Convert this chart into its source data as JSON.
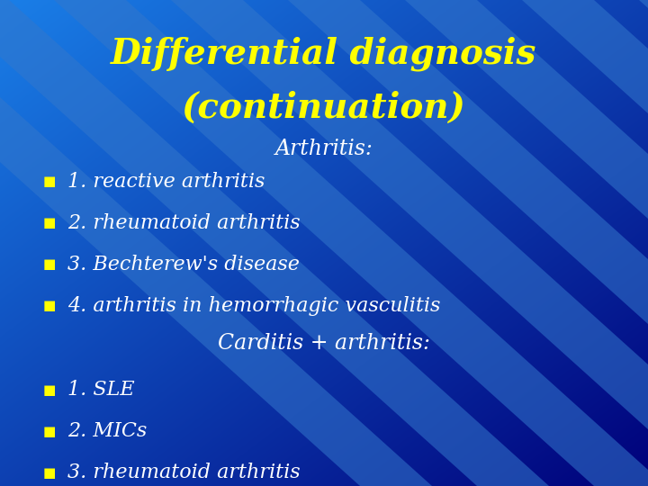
{
  "title_line1": "Differential diagnosis",
  "title_line2": "(continuation)",
  "title_color": "#FFFF00",
  "title_fontsize": 28,
  "bg_color_topleft": "#1a7fe8",
  "bg_color_bottomright": "#00007a",
  "section1_label": "Arthritis:",
  "section1_color": "#FFFFFF",
  "section1_fontsize": 17,
  "section1_items": [
    "1. reactive arthritis",
    "2. rheumatoid arthritis",
    "3. Bechterew's disease",
    "4. arthritis in hemorrhagic vasculitis"
  ],
  "section2_label": "Carditis + arthritis:",
  "section2_color": "#FFFFFF",
  "section2_fontsize": 17,
  "section2_items": [
    "1. SLE",
    "2. MICs",
    "3. rheumatoid arthritis"
  ],
  "bullet_color": "#FFFF00",
  "item_color": "#FFFFFF",
  "item_fontsize": 16,
  "bullet_fontsize": 11,
  "stripe_color": "#3377cc",
  "stripe_alpha": 0.55
}
